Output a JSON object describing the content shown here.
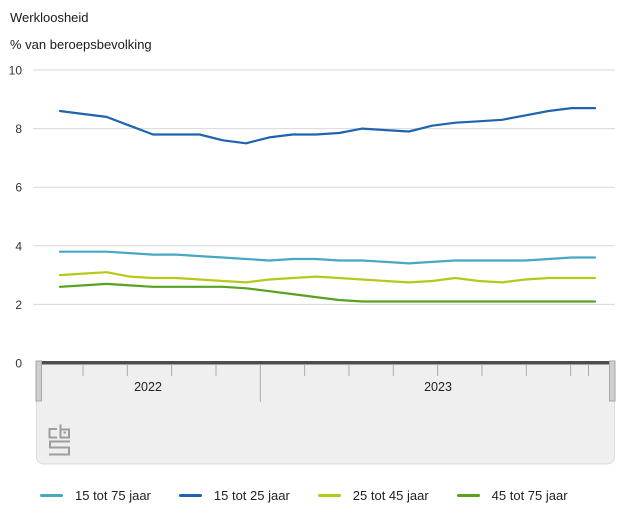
{
  "chart": {
    "title": "Werkloosheid",
    "subtitle": "% van beroepsbevolking"
  },
  "chart_data": {
    "type": "line",
    "title": "Werkloosheid",
    "subtitle": "% van beroepsbevolking",
    "ylabel": "% van beroepsbevolking",
    "ylim": [
      0,
      10
    ],
    "yticks": [
      0,
      2,
      4,
      6,
      8,
      10
    ],
    "grid": true,
    "legend_position": "bottom",
    "x_axis_year_labels": [
      "2022",
      "2023"
    ],
    "x": [
      "2022-01",
      "2022-02",
      "2022-03",
      "2022-04",
      "2022-05",
      "2022-06",
      "2022-07",
      "2022-08",
      "2022-09",
      "2022-10",
      "2022-11",
      "2022-12",
      "2023-01",
      "2023-02",
      "2023-03",
      "2023-04",
      "2023-05",
      "2023-06",
      "2023-07",
      "2023-08",
      "2023-09",
      "2023-10",
      "2023-11",
      "2023-12"
    ],
    "series": [
      {
        "name": "15 tot 75 jaar",
        "color": "#45a9c4",
        "values": [
          3.8,
          3.8,
          3.8,
          3.75,
          3.7,
          3.7,
          3.65,
          3.6,
          3.55,
          3.5,
          3.55,
          3.55,
          3.5,
          3.5,
          3.45,
          3.4,
          3.45,
          3.5,
          3.5,
          3.5,
          3.5,
          3.55,
          3.6,
          3.6
        ]
      },
      {
        "name": "15 tot 25 jaar",
        "color": "#1e64af",
        "values": [
          8.6,
          8.5,
          8.4,
          8.1,
          7.8,
          7.8,
          7.8,
          7.6,
          7.5,
          7.7,
          7.8,
          7.8,
          7.85,
          8.0,
          7.95,
          7.9,
          8.1,
          8.2,
          8.25,
          8.3,
          8.45,
          8.6,
          8.7,
          8.7
        ]
      },
      {
        "name": "25 tot 45 jaar",
        "color": "#b5ca16",
        "values": [
          3.0,
          3.05,
          3.1,
          2.95,
          2.9,
          2.9,
          2.85,
          2.8,
          2.75,
          2.85,
          2.9,
          2.95,
          2.9,
          2.85,
          2.8,
          2.75,
          2.8,
          2.9,
          2.8,
          2.75,
          2.85,
          2.9,
          2.9,
          2.9
        ]
      },
      {
        "name": "45 tot 75 jaar",
        "color": "#57a221",
        "values": [
          2.6,
          2.65,
          2.7,
          2.65,
          2.6,
          2.6,
          2.6,
          2.6,
          2.55,
          2.45,
          2.35,
          2.25,
          2.15,
          2.1,
          2.1,
          2.1,
          2.1,
          2.1,
          2.1,
          2.1,
          2.1,
          2.1,
          2.1,
          2.1
        ]
      }
    ],
    "colors": {
      "gridline": "#d9d9d9",
      "slider_track": "#efefef",
      "slider_topbar": "#4d4d4d",
      "text": "#1a1a1a"
    }
  }
}
